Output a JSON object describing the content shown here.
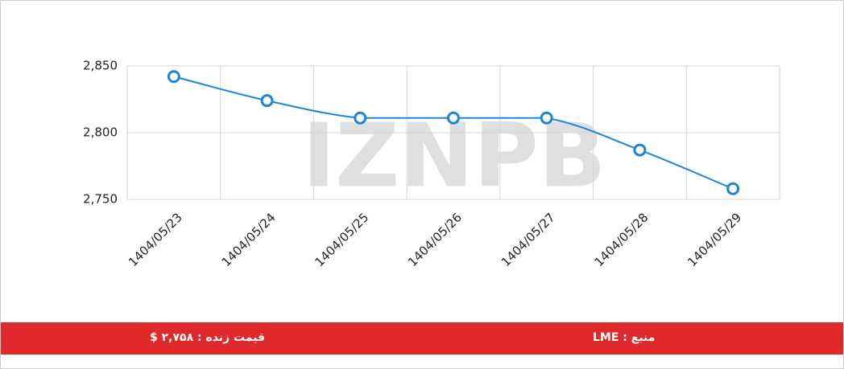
{
  "chart_data": {
    "type": "line",
    "watermark": "IZNPB",
    "categories": [
      "1404/05/23",
      "1404/05/24",
      "1404/05/25",
      "1404/05/26",
      "1404/05/27",
      "1404/05/28",
      "1404/05/29"
    ],
    "values": [
      2842,
      2824,
      2811,
      2811,
      2811,
      2787,
      2758
    ],
    "color": "#1a86d9",
    "ylim": [
      2750,
      2850
    ],
    "yticks": [
      {
        "value": 2750,
        "label": "2,750"
      },
      {
        "value": 2800,
        "label": "2,800"
      },
      {
        "value": 2850,
        "label": "2,850"
      }
    ],
    "grid": true
  },
  "footer": {
    "live_price": "قیمت زنده : ۲,۷۵۸ $",
    "source": "منبع : LME"
  }
}
